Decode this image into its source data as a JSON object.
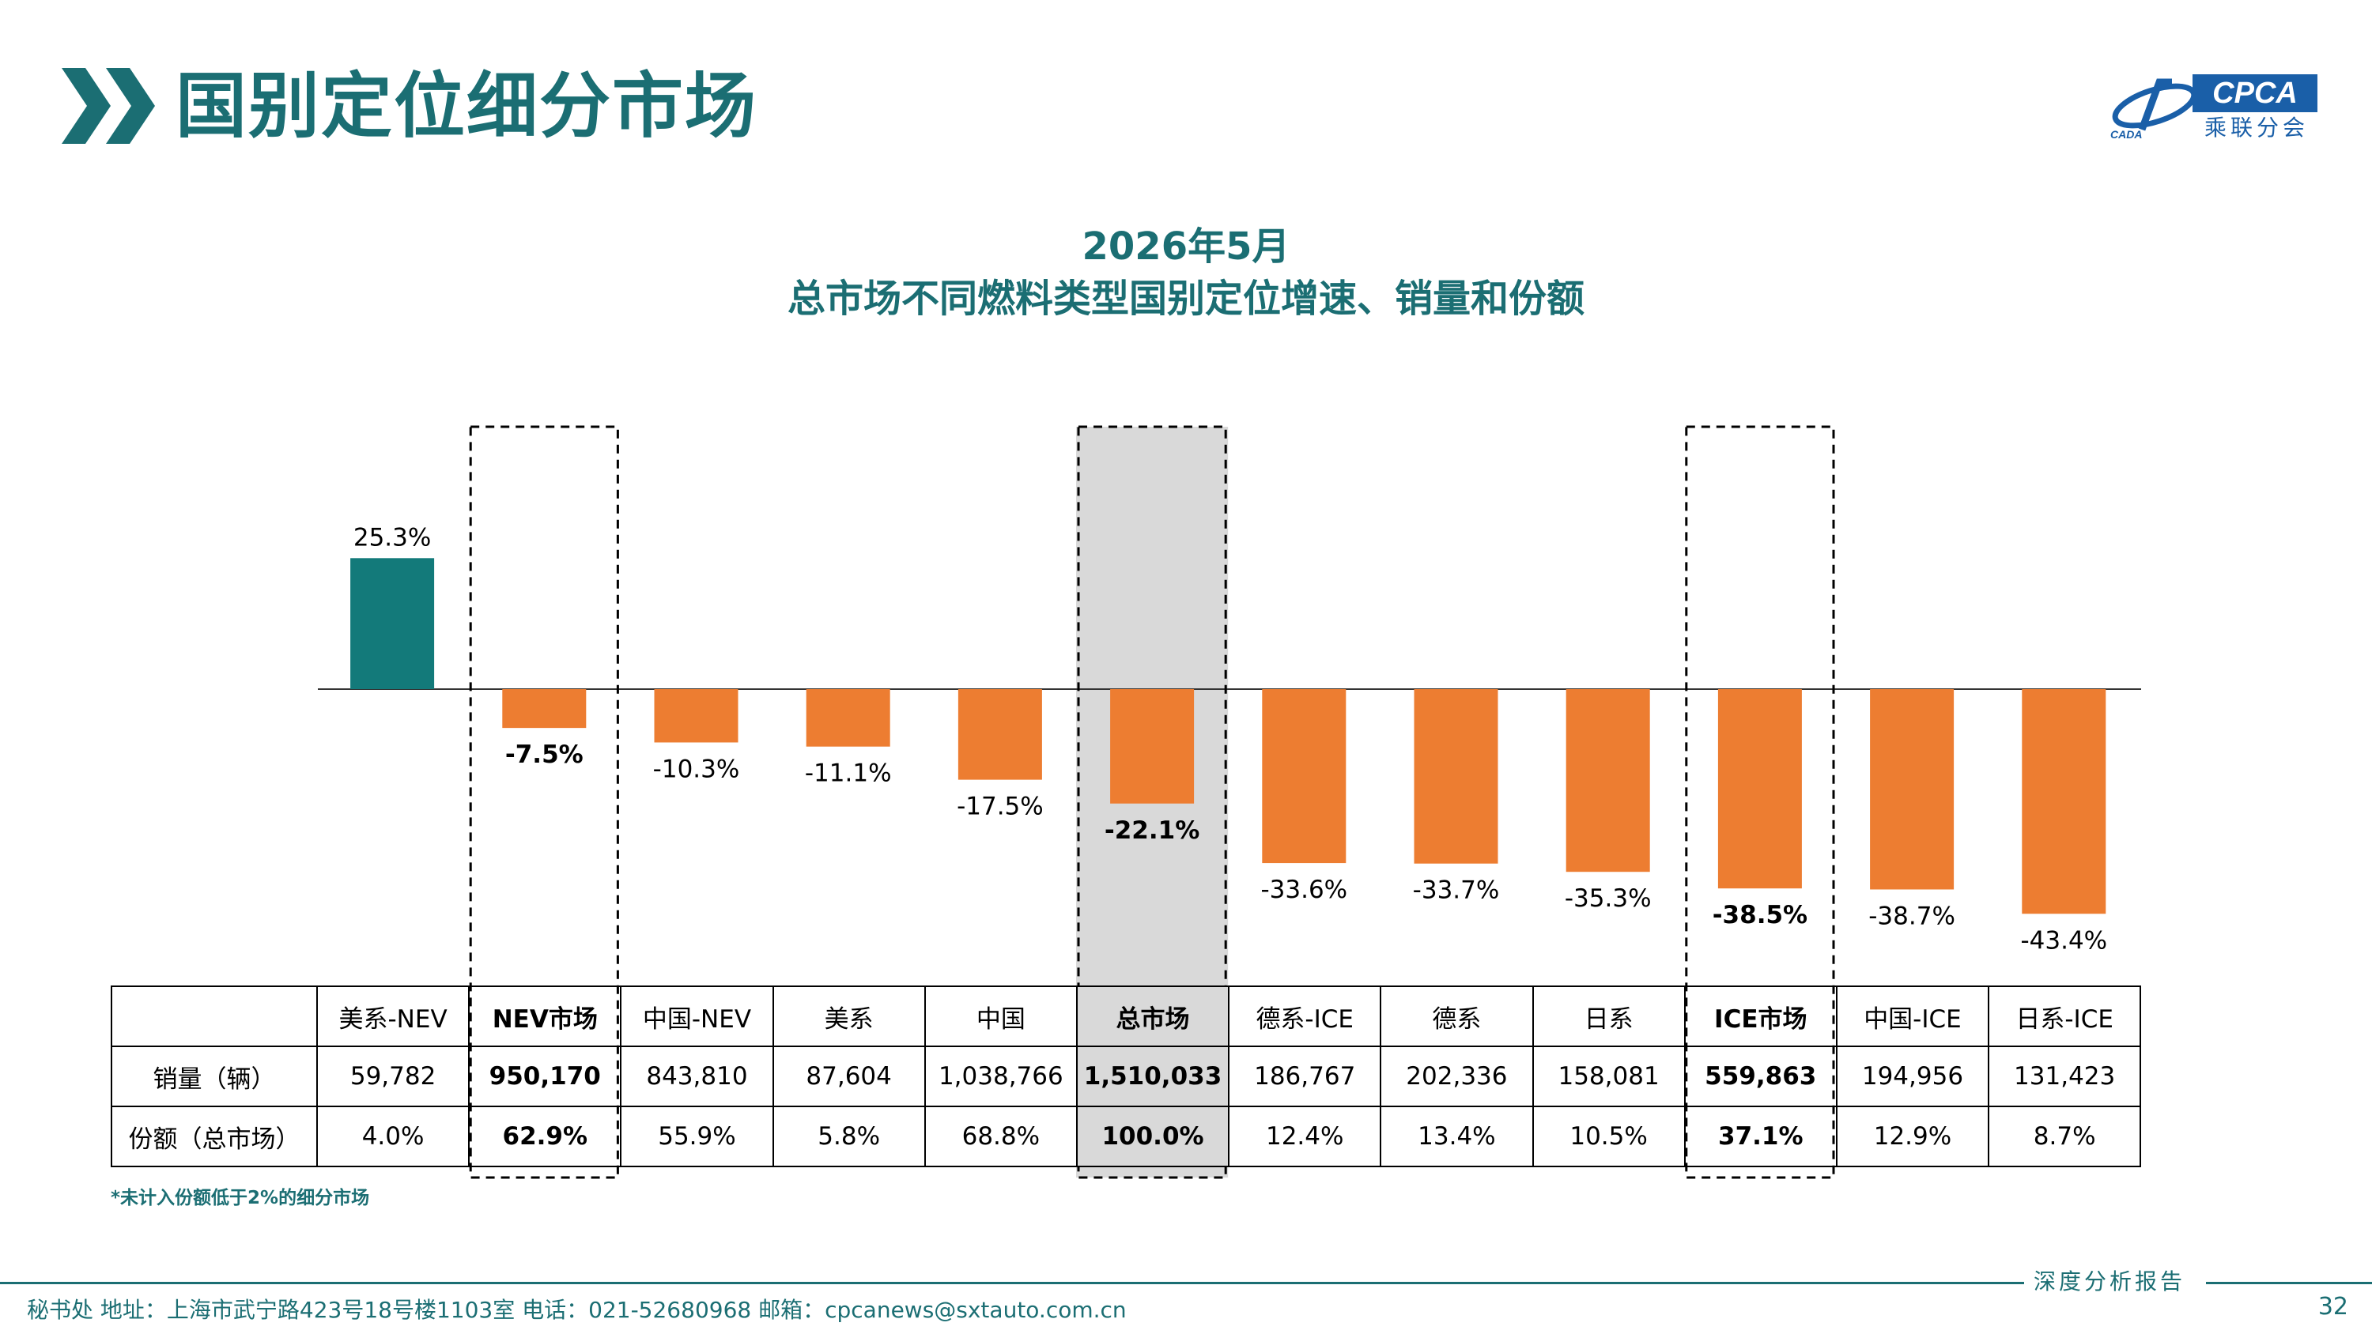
{
  "header": {
    "title": "国别定位细分市场",
    "logo_text": "CPCA",
    "logo_cn": "乘联分会",
    "logo_sub": "CADA"
  },
  "colors": {
    "teal": "#137a7a",
    "orange": "#ed7d31",
    "title": "#1b6e73",
    "highlight": "#d9d9d9"
  },
  "chart_data": {
    "type": "bar",
    "title": "2026年5月",
    "subtitle": "总市场不同燃料类型国别定位增速、销量和份额",
    "categories": [
      "美系-NEV",
      "NEV市场",
      "中国-NEV",
      "美系",
      "中国",
      "总市场",
      "德系-ICE",
      "德系",
      "日系",
      "ICE市场",
      "中国-ICE",
      "日系-ICE"
    ],
    "series": [
      {
        "values": [
          25.3,
          -7.5,
          -10.3,
          -11.1,
          -17.5,
          -22.1,
          -33.6,
          -33.7,
          -35.3,
          -38.5,
          -38.7,
          -43.4
        ]
      }
    ],
    "value_labels": [
      "25.3%",
      "-7.5%",
      "-10.3%",
      "-11.1%",
      "-17.5%",
      "-22.1%",
      "-33.6%",
      "-33.7%",
      "-35.3%",
      "-38.5%",
      "-38.7%",
      "-43.4%"
    ],
    "bold_categories": [
      "NEV市场",
      "总市场",
      "ICE市场"
    ],
    "boxed_categories": [
      "NEV市场",
      "总市场",
      "ICE市场"
    ],
    "highlighted_category": "总市场",
    "positive_color": "#137a7a",
    "negative_color": "#ed7d31",
    "grid": false,
    "unit": "%"
  },
  "table": {
    "rows": [
      {
        "label": "销量（辆）",
        "values": [
          "59,782",
          "950,170",
          "843,810",
          "87,604",
          "1,038,766",
          "1,510,033",
          "186,767",
          "202,336",
          "158,081",
          "559,863",
          "194,956",
          "131,423"
        ]
      },
      {
        "label": "份额（总市场）",
        "values": [
          "4.0%",
          "62.9%",
          "55.9%",
          "5.8%",
          "68.8%",
          "100.0%",
          "12.4%",
          "13.4%",
          "10.5%",
          "37.1%",
          "12.9%",
          "8.7%"
        ]
      }
    ]
  },
  "footnote": "*未计入份额低于2%的细分市场",
  "footer": {
    "info": "秘书处   地址：上海市武宁路423号18号楼1103室   电话：021-52680968   邮箱：cpcanews@sxtauto.com.cn",
    "report_label": "深度分析报告",
    "page_number": "32"
  }
}
